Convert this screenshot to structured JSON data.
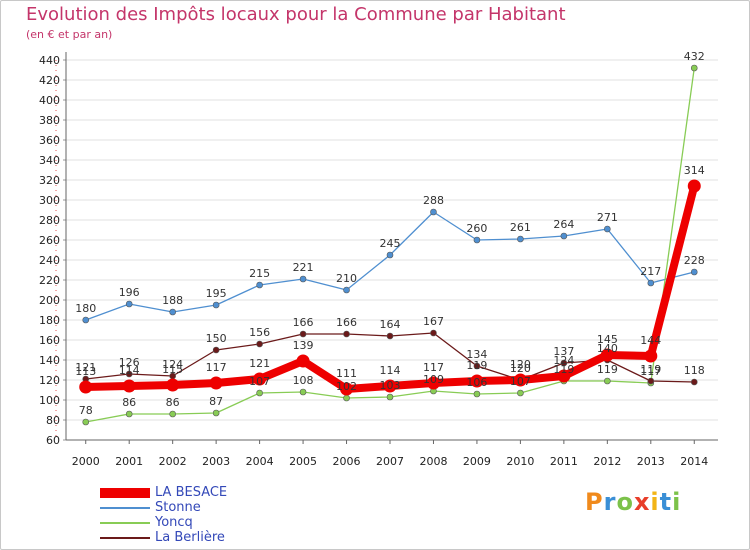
{
  "header": {
    "title": "Evolution des Impôts locaux pour la Commune par Habitant",
    "subtitle": "(en € et par an)"
  },
  "logo": {
    "text": "Proxiti",
    "letters": [
      "P",
      "r",
      "o",
      "x",
      "i",
      "t",
      "i"
    ],
    "colors": [
      "#f08a1c",
      "#3a8fd6",
      "#7cc24a",
      "#e83e2a",
      "#f2b416",
      "#3a8fd6",
      "#7cc24a"
    ]
  },
  "chart_data": {
    "type": "line",
    "x": [
      "2000",
      "2001",
      "2002",
      "2003",
      "2004",
      "2005",
      "2006",
      "2007",
      "2008",
      "2009",
      "2010",
      "2011",
      "2012",
      "2013",
      "2014"
    ],
    "ylim": [
      60,
      440
    ],
    "yticks": [
      60,
      80,
      100,
      120,
      140,
      160,
      180,
      200,
      220,
      240,
      260,
      280,
      300,
      320,
      340,
      360,
      380,
      400,
      420,
      440
    ],
    "grid": "horizontal",
    "legend_position": "bottom-left",
    "series": [
      {
        "name": "LA BESACE",
        "color": "#ee0000",
        "values": [
          113,
          114,
          115,
          117,
          121,
          139,
          111,
          114,
          117,
          119,
          120,
          124,
          145,
          144,
          314
        ],
        "labels": [
          "113",
          "114",
          "115",
          "117",
          "121",
          "139",
          "111",
          "114",
          "117",
          "119",
          "120",
          "124",
          "145",
          "144",
          "314"
        ]
      },
      {
        "name": "Stonne",
        "color": "#4f8fd0",
        "values": [
          180,
          196,
          188,
          195,
          215,
          221,
          210,
          245,
          288,
          260,
          261,
          264,
          271,
          217,
          228
        ],
        "labels": [
          "180",
          "196",
          "188",
          "195",
          "215",
          "221",
          "210",
          "245",
          "288",
          "260",
          "261",
          "264",
          "271",
          "217",
          "228"
        ]
      },
      {
        "name": "Yoncq",
        "color": "#88cc55",
        "values": [
          78,
          86,
          86,
          87,
          107,
          108,
          102,
          103,
          109,
          106,
          107,
          119,
          119,
          117,
          432
        ],
        "labels": [
          "78",
          "86",
          "86",
          "87",
          "107",
          "108",
          "102",
          "103",
          "109",
          "106",
          "107",
          "119",
          "119",
          "117",
          "432"
        ]
      },
      {
        "name": "La Berlière",
        "color": "#6b1a1a",
        "values": [
          121,
          126,
          124,
          150,
          156,
          166,
          166,
          164,
          167,
          134,
          120,
          137,
          140,
          119,
          118
        ],
        "labels": [
          "121",
          "126",
          "124",
          "150",
          "156",
          "166",
          "166",
          "164",
          "167",
          "134",
          "120",
          "137",
          "140",
          "119",
          "118"
        ]
      }
    ]
  }
}
